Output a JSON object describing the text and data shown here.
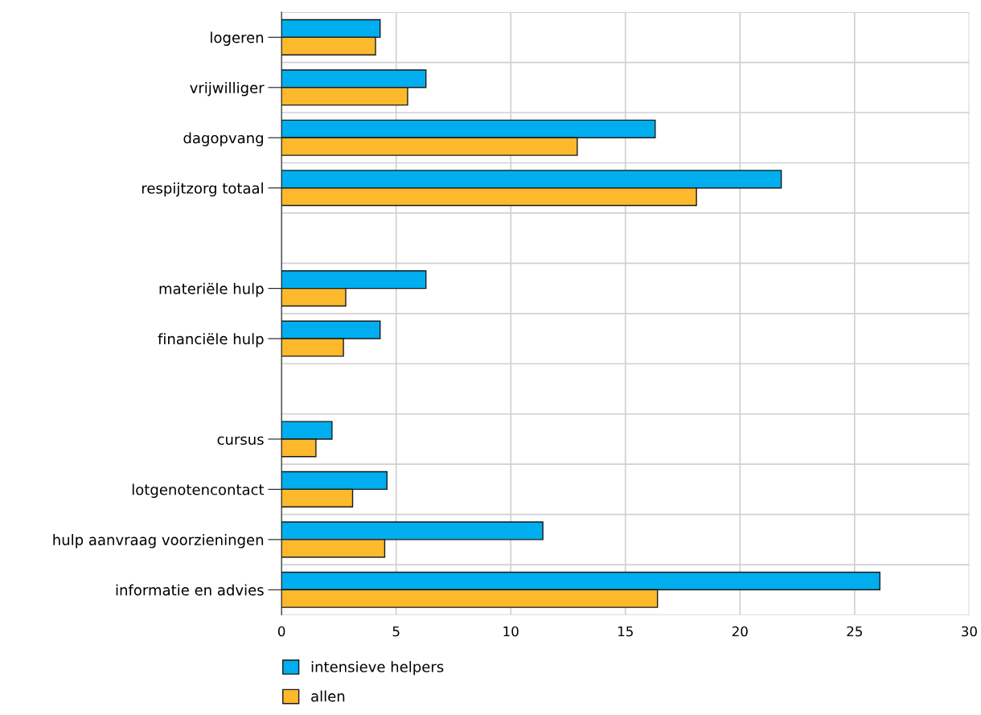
{
  "chart_data": {
    "type": "bar",
    "orientation": "horizontal",
    "categories": [
      "logeren",
      "vrijwilliger",
      "dagopvang",
      "respijtzorg totaal",
      null,
      "materiële hulp",
      "financiële hulp",
      null,
      "cursus",
      "lotgenotencontact",
      "hulp aanvraag voorzieningen",
      "informatie en advies"
    ],
    "series": [
      {
        "name": "intensieve helpers",
        "color": "#00aeef",
        "values": [
          4.3,
          6.3,
          16.3,
          21.8,
          null,
          6.3,
          4.3,
          null,
          2.2,
          4.6,
          11.4,
          26.1
        ]
      },
      {
        "name": "allen",
        "color": "#fdb92c",
        "values": [
          4.1,
          5.5,
          12.9,
          18.1,
          null,
          2.8,
          2.7,
          null,
          1.5,
          3.1,
          4.5,
          16.4
        ]
      }
    ],
    "xlim": [
      0,
      30
    ],
    "xticks": [
      0,
      5,
      10,
      15,
      20,
      25,
      30
    ],
    "grid": true,
    "legend": "bottom"
  }
}
